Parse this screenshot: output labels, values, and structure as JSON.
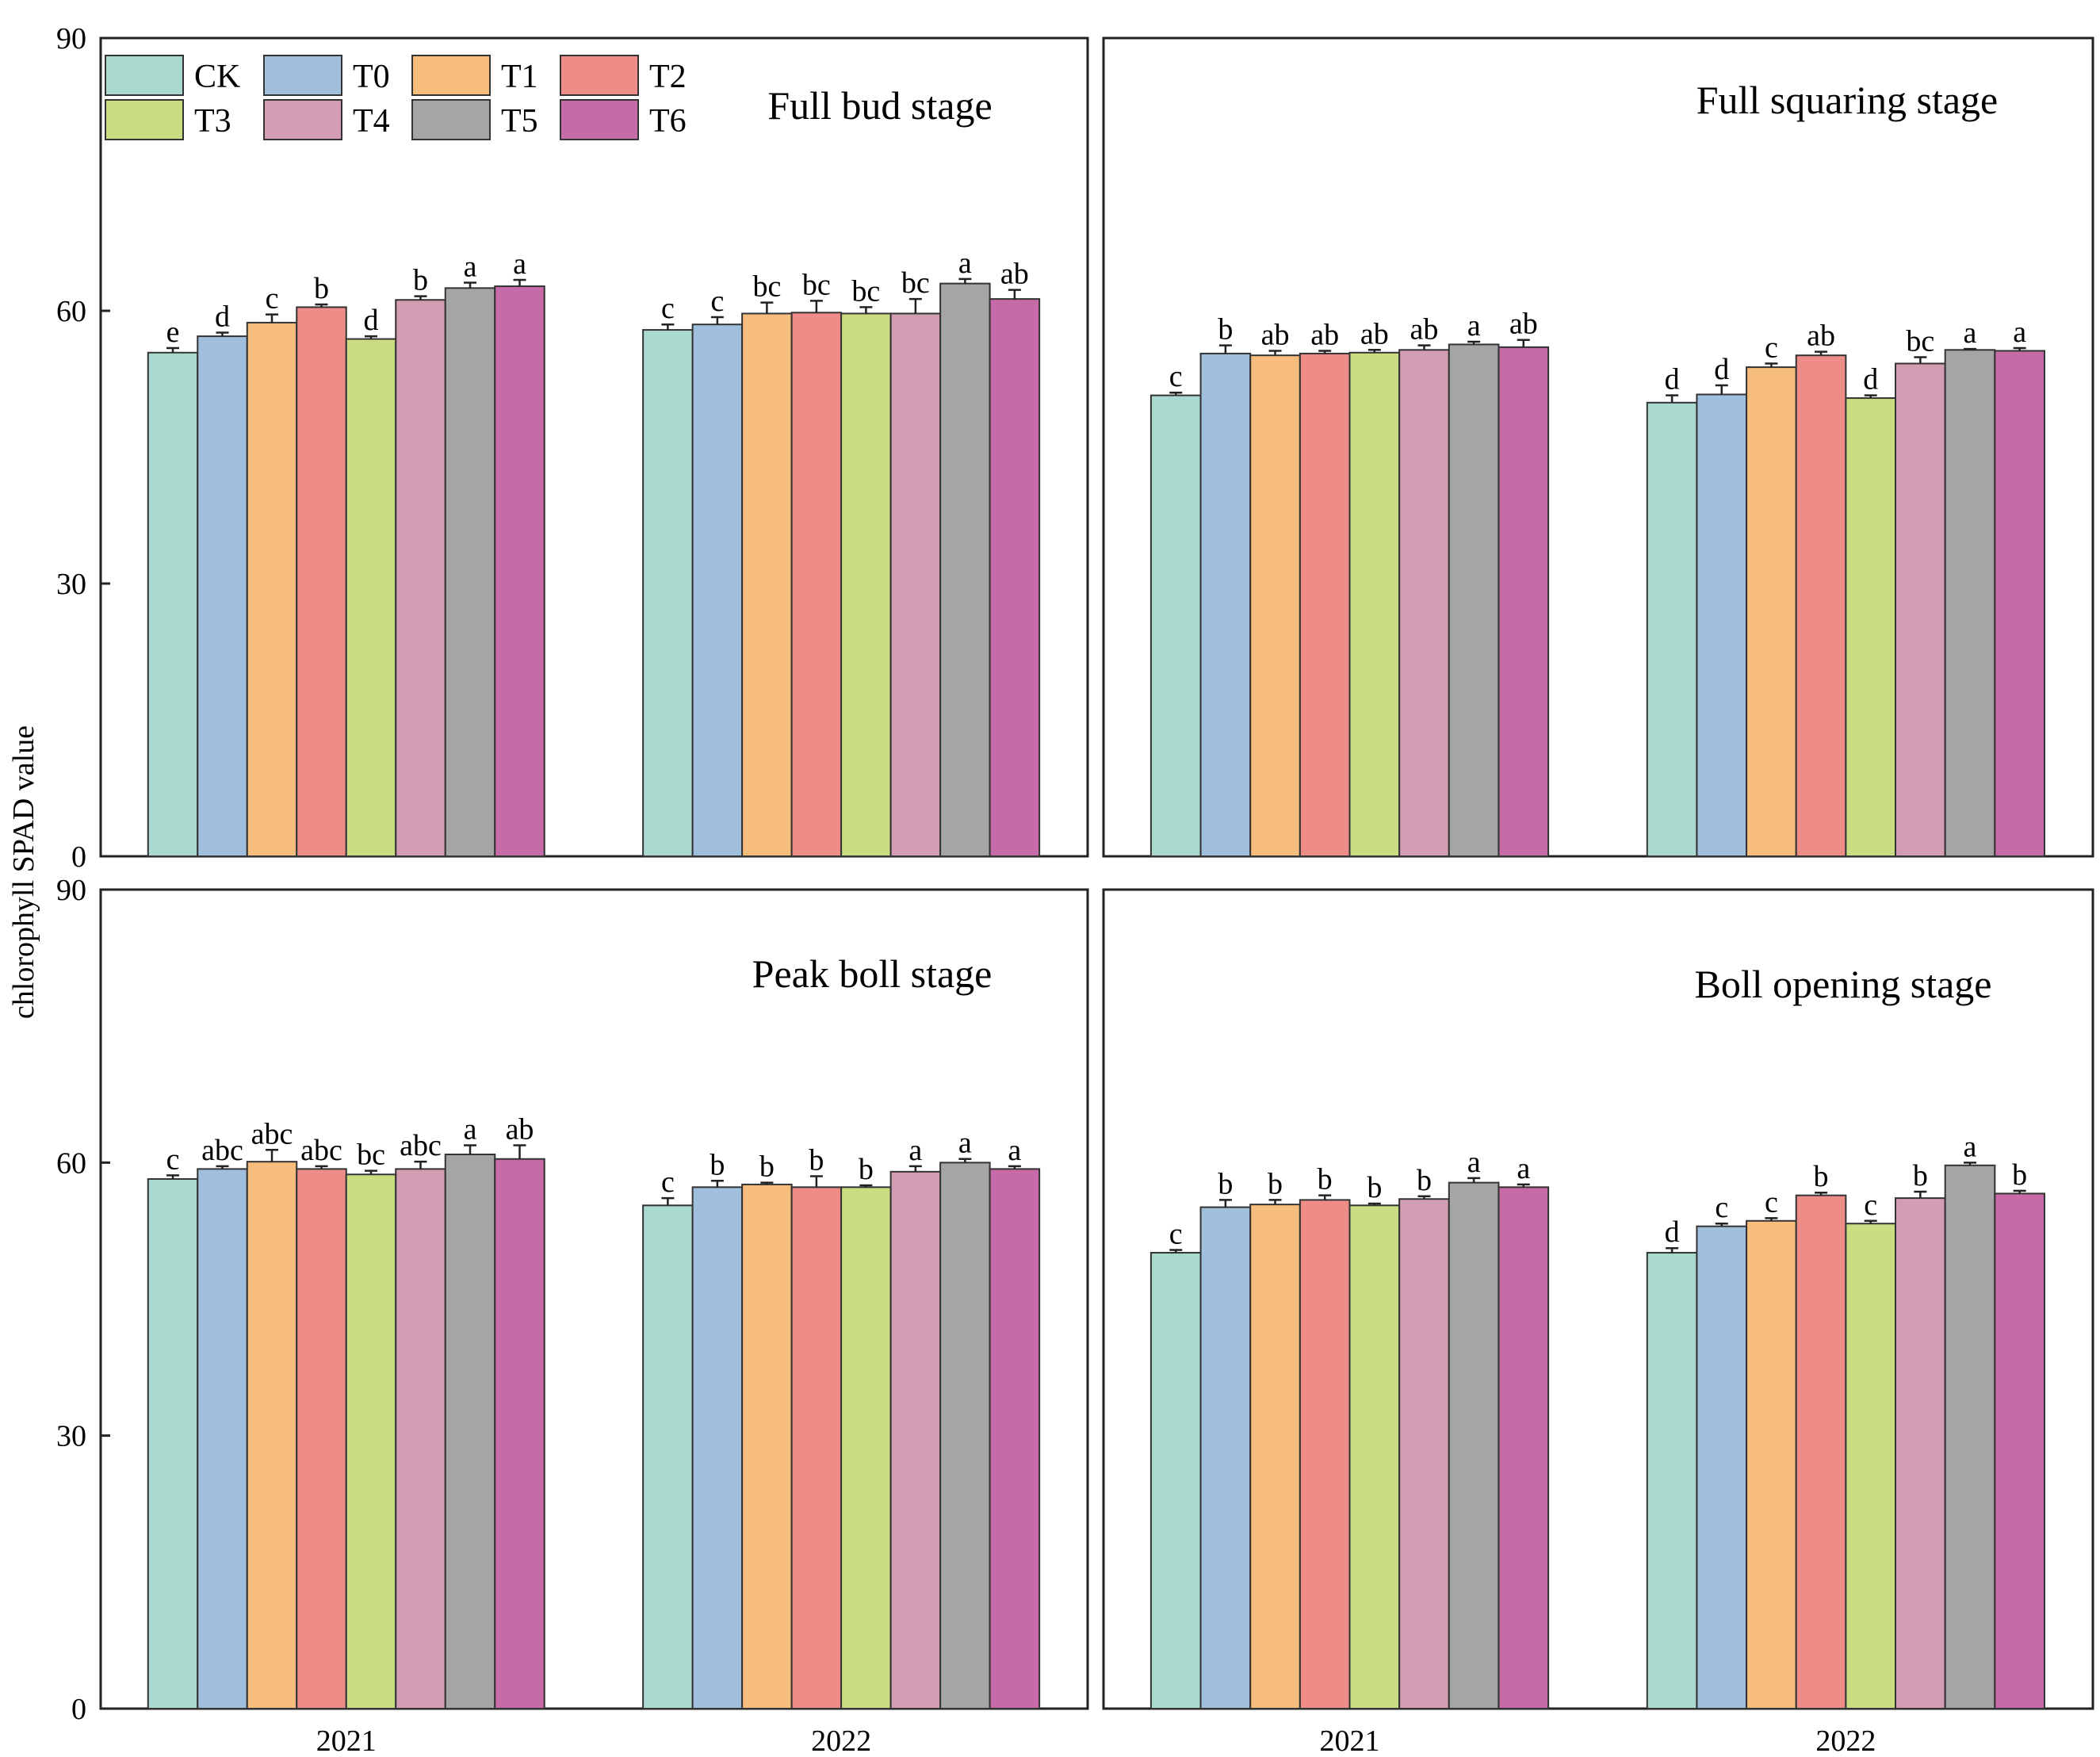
{
  "chart_data": {
    "type": "bar",
    "ylabel": "chlorophyll SPAD value",
    "ylim": [
      0,
      90
    ],
    "yticks": [
      "0",
      "30",
      "60",
      "90"
    ],
    "categories": [
      "2021",
      "2022"
    ],
    "treatments": [
      "CK",
      "T0",
      "T1",
      "T2",
      "T3",
      "T4",
      "T5",
      "T6"
    ],
    "colors": [
      "#a9d9cf",
      "#9fbfdd",
      "#f7bd7c",
      "#ee8d88",
      "#cbdd82",
      "#d39db3",
      "#a5a4a6",
      "#c66aa8"
    ],
    "legend_position": "top-left",
    "panels": [
      {
        "title": "Full bud stage",
        "values": [
          [
            55.4,
            57.2,
            58.7,
            60.4,
            56.9,
            61.2,
            62.5,
            62.7
          ],
          [
            57.9,
            58.5,
            59.7,
            59.8,
            59.7,
            59.7,
            63.0,
            61.3
          ]
        ],
        "errors": [
          [
            0.5,
            0.4,
            0.9,
            0.3,
            0.3,
            0.4,
            0.6,
            0.7
          ],
          [
            0.6,
            0.8,
            1.2,
            1.3,
            0.7,
            1.6,
            0.5,
            1.0
          ]
        ],
        "letters": [
          [
            "e",
            "d",
            "c",
            "b",
            "d",
            "b",
            "a",
            "a"
          ],
          [
            "c",
            "c",
            "bc",
            "bc",
            "bc",
            "bc",
            "a",
            "ab"
          ]
        ]
      },
      {
        "title": "Full squaring stage",
        "values": [
          [
            50.7,
            55.3,
            55.1,
            55.3,
            55.4,
            55.7,
            56.3,
            56.0
          ],
          [
            49.9,
            50.8,
            53.8,
            55.1,
            50.4,
            54.2,
            55.7,
            55.6
          ]
        ],
        "errors": [
          [
            0.3,
            0.9,
            0.5,
            0.3,
            0.3,
            0.5,
            0.3,
            0.8
          ],
          [
            0.8,
            1.0,
            0.4,
            0.4,
            0.3,
            0.7,
            0.1,
            0.3
          ]
        ],
        "letters": [
          [
            "c",
            "b",
            "ab",
            "ab",
            "ab",
            "ab",
            "a",
            "ab"
          ],
          [
            "d",
            "d",
            "c",
            "ab",
            "d",
            "bc",
            "a",
            "a"
          ]
        ]
      },
      {
        "title": "Peak boll stage",
        "values": [
          [
            58.2,
            59.3,
            60.1,
            59.3,
            58.7,
            59.3,
            60.9,
            60.4
          ],
          [
            55.3,
            57.3,
            57.6,
            57.3,
            57.3,
            59.0,
            60.0,
            59.3
          ]
        ],
        "errors": [
          [
            0.4,
            0.3,
            1.3,
            0.3,
            0.4,
            0.8,
            1.0,
            1.5
          ],
          [
            0.8,
            0.7,
            0.2,
            1.2,
            0.2,
            0.6,
            0.4,
            0.3
          ]
        ],
        "letters": [
          [
            "c",
            "abc",
            "abc",
            "abc",
            "bc",
            "abc",
            "a",
            "ab"
          ],
          [
            "c",
            "b",
            "b",
            "b",
            "b",
            "a",
            "a",
            "a"
          ]
        ]
      },
      {
        "title": "Boll opening stage",
        "values": [
          [
            50.1,
            55.1,
            55.4,
            55.9,
            55.3,
            56.0,
            57.8,
            57.3
          ],
          [
            50.1,
            53.0,
            53.6,
            56.4,
            53.3,
            56.1,
            59.7,
            56.6
          ]
        ],
        "errors": [
          [
            0.3,
            0.8,
            0.5,
            0.5,
            0.2,
            0.3,
            0.5,
            0.3
          ],
          [
            0.5,
            0.3,
            0.3,
            0.3,
            0.3,
            0.7,
            0.3,
            0.3
          ]
        ],
        "letters": [
          [
            "c",
            "b",
            "b",
            "b",
            "b",
            "b",
            "a",
            "a"
          ],
          [
            "d",
            "c",
            "c",
            "b",
            "c",
            "b",
            "a",
            "b"
          ]
        ]
      }
    ]
  }
}
